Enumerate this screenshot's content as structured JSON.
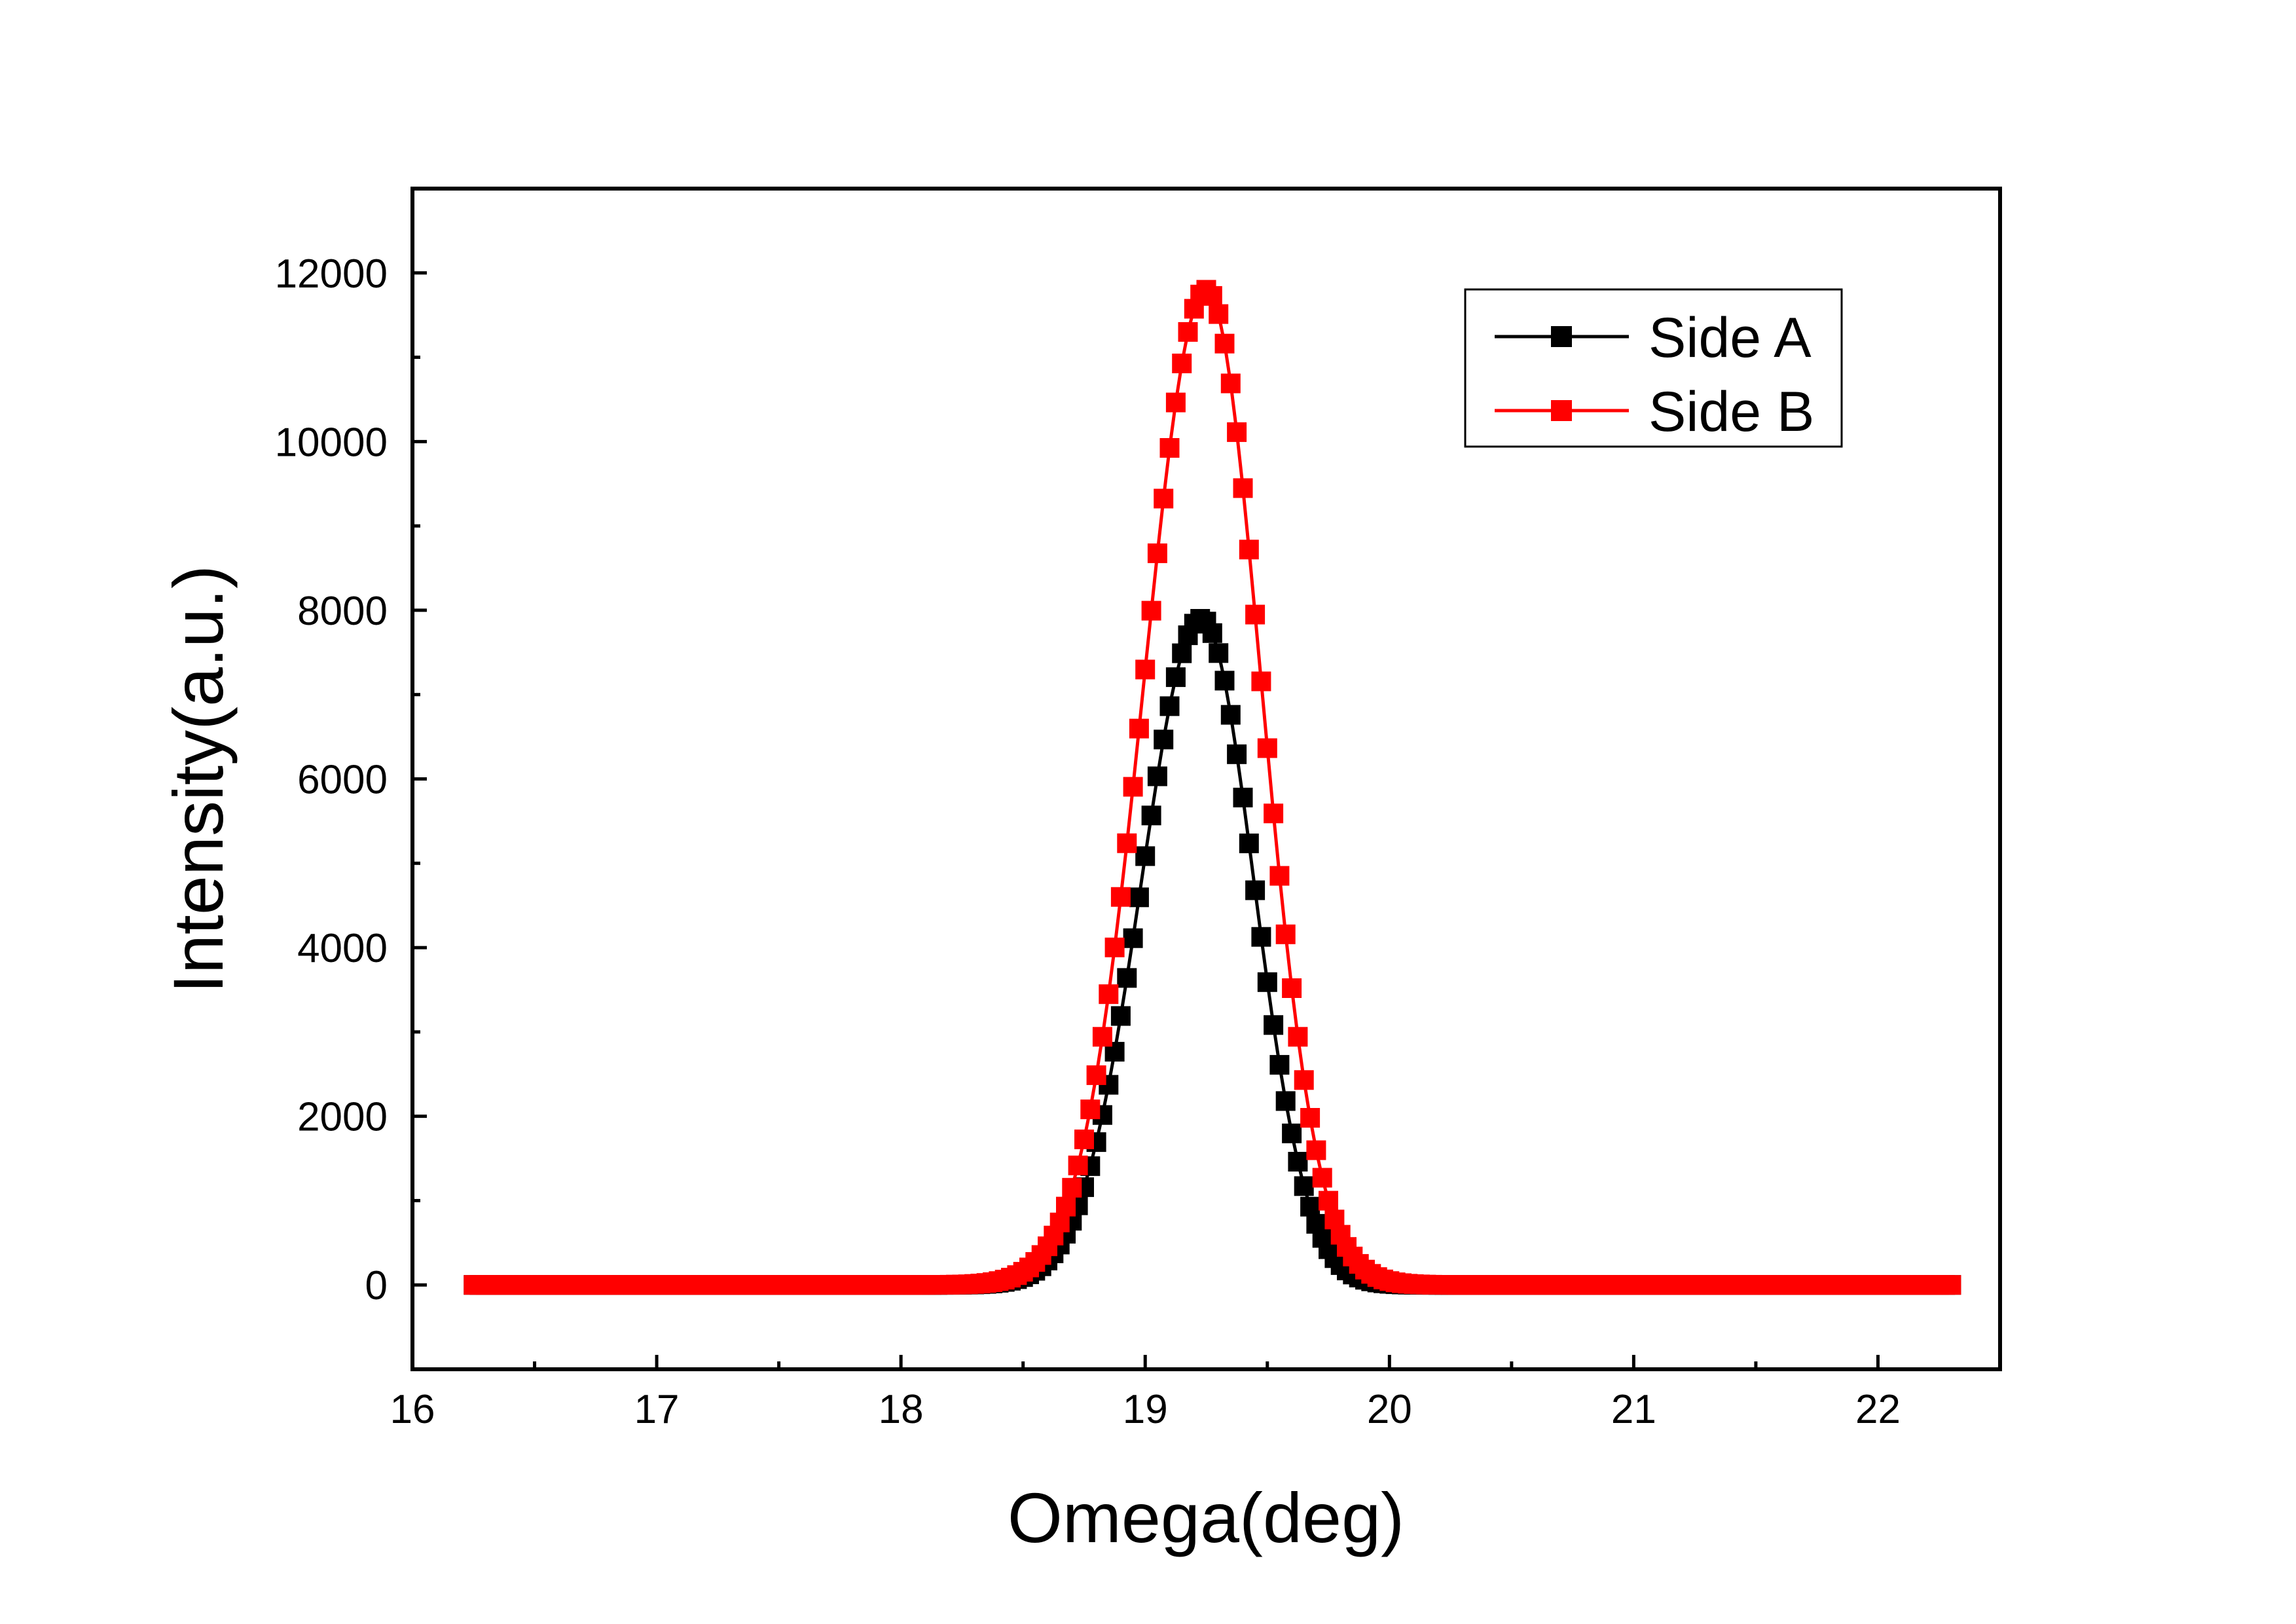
{
  "chart_data": {
    "type": "line",
    "xlabel": "Omega(deg)",
    "ylabel": "Intensity(a.u.)",
    "xlim": [
      16,
      22.5
    ],
    "ylim": [
      -1000,
      13000
    ],
    "xticks": [
      16,
      17,
      18,
      19,
      20,
      21,
      22
    ],
    "xtick_labels": [
      "16",
      "17",
      "18",
      "19",
      "20",
      "21",
      "22"
    ],
    "yticks": [
      0,
      2000,
      4000,
      6000,
      8000,
      10000,
      12000
    ],
    "ytick_labels": [
      "0",
      "2000",
      "4000",
      "6000",
      "8000",
      "10000",
      "12000"
    ],
    "grid": false,
    "legend_position": "top-right",
    "marker": "square",
    "series": [
      {
        "name": "Side A",
        "color": "#000000",
        "x_range": [
          16.25,
          22.3
        ],
        "point_count": 243,
        "peak_x": 19.23,
        "peak_value": 7900,
        "left_width": 0.245,
        "right_width": 0.215,
        "baseline": 0
      },
      {
        "name": "Side B",
        "color": "#ff0000",
        "x_range": [
          16.25,
          22.3
        ],
        "point_count": 243,
        "peak_x": 19.25,
        "peak_value": 11800,
        "left_width": 0.255,
        "right_width": 0.225,
        "baseline": 0
      }
    ]
  }
}
